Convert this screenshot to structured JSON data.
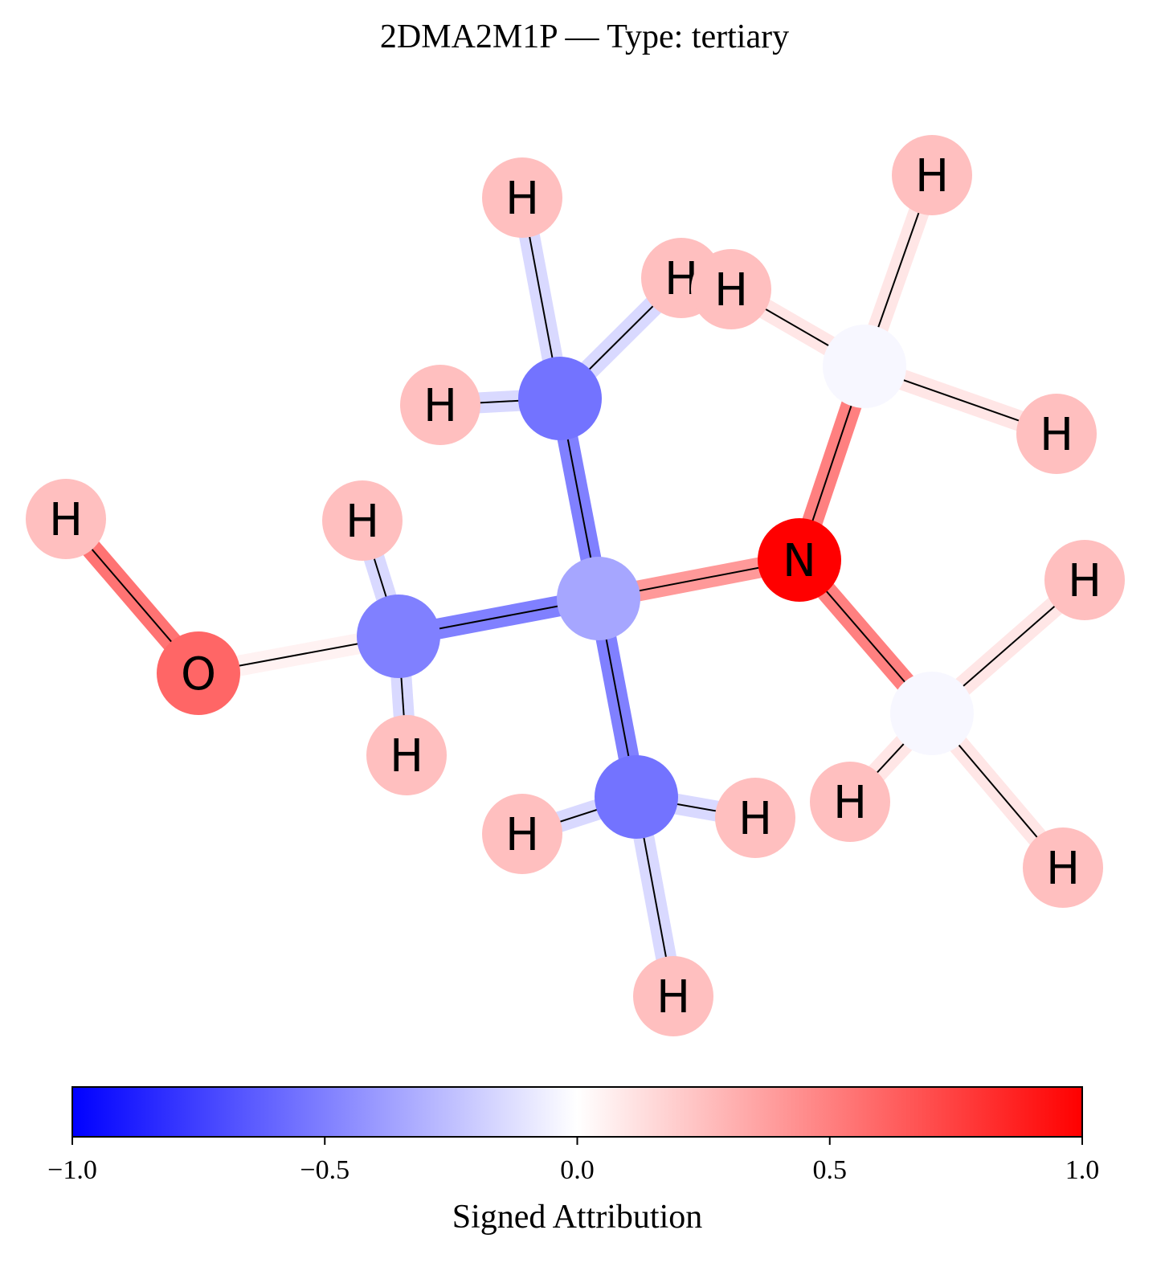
{
  "title": "2DMA2M1P — Type: tertiary",
  "molecule": {
    "atoms": [
      {
        "id": "O1",
        "label": "O",
        "attribution": 0.6
      },
      {
        "id": "HO",
        "label": "H",
        "attribution": 0.25
      },
      {
        "id": "C1",
        "label": "",
        "attribution": -0.5
      },
      {
        "id": "H1a",
        "label": "H",
        "attribution": 0.25
      },
      {
        "id": "H1b",
        "label": "H",
        "attribution": 0.25
      },
      {
        "id": "C2",
        "label": "",
        "attribution": -0.35
      },
      {
        "id": "C3",
        "label": "",
        "attribution": -0.55
      },
      {
        "id": "H3a",
        "label": "H",
        "attribution": 0.25
      },
      {
        "id": "H3b",
        "label": "H",
        "attribution": 0.25
      },
      {
        "id": "H3c",
        "label": "H",
        "attribution": 0.25
      },
      {
        "id": "C4",
        "label": "",
        "attribution": -0.55
      },
      {
        "id": "H4a",
        "label": "H",
        "attribution": 0.25
      },
      {
        "id": "H4b",
        "label": "H",
        "attribution": 0.25
      },
      {
        "id": "H4c",
        "label": "H",
        "attribution": 0.25
      },
      {
        "id": "N",
        "label": "N",
        "attribution": 1.0
      },
      {
        "id": "C5",
        "label": "",
        "attribution": -0.03
      },
      {
        "id": "H5a",
        "label": "H",
        "attribution": 0.25
      },
      {
        "id": "H5b",
        "label": "H",
        "attribution": 0.25
      },
      {
        "id": "H5c",
        "label": "H",
        "attribution": 0.25
      },
      {
        "id": "C6",
        "label": "",
        "attribution": -0.03
      },
      {
        "id": "H6a",
        "label": "H",
        "attribution": 0.25
      },
      {
        "id": "H6b",
        "label": "H",
        "attribution": 0.25
      },
      {
        "id": "H6c",
        "label": "H",
        "attribution": 0.25
      }
    ],
    "bonds": [
      {
        "a": "HO",
        "b": "O1",
        "attribution": 0.55
      },
      {
        "a": "O1",
        "b": "C1",
        "attribution": 0.05
      },
      {
        "a": "C1",
        "b": "C2",
        "attribution": -0.5
      },
      {
        "a": "C1",
        "b": "H1a",
        "attribution": -0.15
      },
      {
        "a": "C1",
        "b": "H1b",
        "attribution": -0.15
      },
      {
        "a": "C2",
        "b": "C3",
        "attribution": -0.5
      },
      {
        "a": "C2",
        "b": "C4",
        "attribution": -0.5
      },
      {
        "a": "C2",
        "b": "N",
        "attribution": 0.4
      },
      {
        "a": "C3",
        "b": "H3a",
        "attribution": -0.15
      },
      {
        "a": "C3",
        "b": "H3b",
        "attribution": -0.15
      },
      {
        "a": "C3",
        "b": "H3c",
        "attribution": -0.15
      },
      {
        "a": "C4",
        "b": "H4a",
        "attribution": -0.15
      },
      {
        "a": "C4",
        "b": "H4b",
        "attribution": -0.15
      },
      {
        "a": "C4",
        "b": "H4c",
        "attribution": -0.15
      },
      {
        "a": "N",
        "b": "C5",
        "attribution": 0.5
      },
      {
        "a": "N",
        "b": "C6",
        "attribution": 0.5
      },
      {
        "a": "C5",
        "b": "H5a",
        "attribution": 0.1
      },
      {
        "a": "C5",
        "b": "H5b",
        "attribution": 0.1
      },
      {
        "a": "C5",
        "b": "H5c",
        "attribution": 0.1
      },
      {
        "a": "C6",
        "b": "H6a",
        "attribution": 0.1
      },
      {
        "a": "C6",
        "b": "H6b",
        "attribution": 0.1
      },
      {
        "a": "C6",
        "b": "H6c",
        "attribution": 0.1
      }
    ]
  },
  "colorbar": {
    "label": "Signed Attribution",
    "range": [
      -1.0,
      1.0
    ],
    "ticks": [
      -1.0,
      -0.5,
      0.0,
      0.5,
      1.0
    ],
    "tick_labels": [
      "−1.0",
      "−0.5",
      "0.0",
      "0.5",
      "1.0"
    ],
    "colormap": "bwr",
    "color_negative": "#0000ff",
    "color_zero": "#ffffff",
    "color_positive": "#ff0000"
  }
}
